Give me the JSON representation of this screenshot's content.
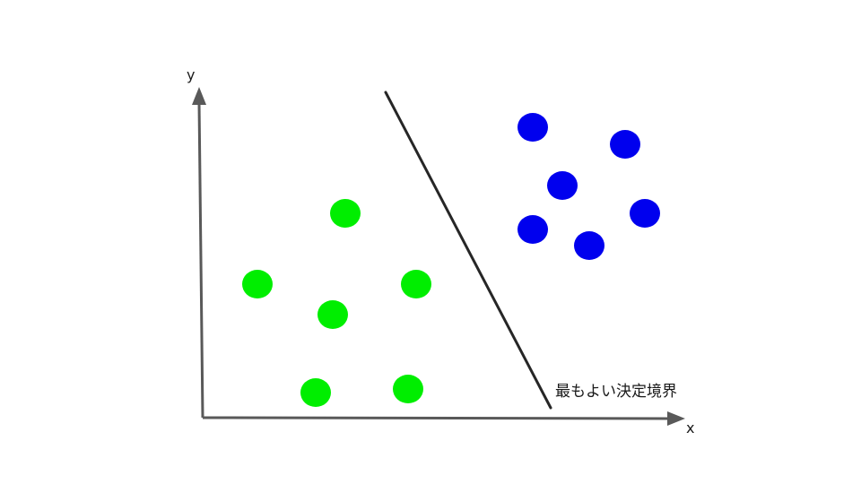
{
  "axes": {
    "x_label": "x",
    "y_label": "y",
    "color": "#595959"
  },
  "boundary": {
    "label": "最もよい決定境界",
    "color": "#262626"
  },
  "classes": [
    {
      "color": "#00ee00",
      "points": [
        [
          385,
          238
        ],
        [
          287,
          317
        ],
        [
          464,
          317
        ],
        [
          371,
          351
        ],
        [
          352,
          438
        ],
        [
          455,
          434
        ]
      ]
    },
    {
      "color": "#0000ee",
      "points": [
        [
          594,
          142
        ],
        [
          697,
          161
        ],
        [
          627,
          207
        ],
        [
          719,
          238
        ],
        [
          594,
          256
        ],
        [
          657,
          274
        ]
      ]
    }
  ]
}
